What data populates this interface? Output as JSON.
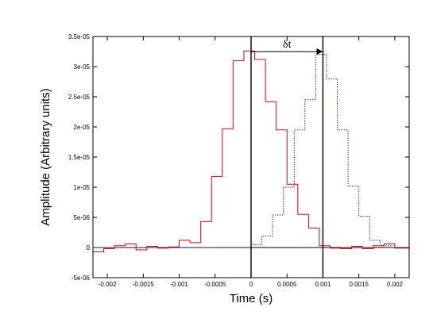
{
  "chart_data": {
    "type": "line",
    "title": "",
    "xlabel": "Time (s)",
    "ylabel": "Amplitude (Arbitrary units)",
    "xlim": [
      -0.0022,
      0.0022
    ],
    "ylim": [
      -5e-06,
      3.5e-05
    ],
    "grid": false,
    "legend": "none",
    "x_ticks": [
      -0.002,
      -0.0015,
      -0.001,
      -0.0005,
      0,
      0.0005,
      0.001,
      0.0015,
      0.002
    ],
    "x_tick_labels": [
      "-0.002",
      "-0.0015",
      "-0.001",
      "-0.0005",
      "0",
      "0.0005",
      "0.001",
      "0.0015",
      "0.002"
    ],
    "y_ticks": [
      -5e-06,
      0,
      5e-06,
      1e-05,
      1.5e-05,
      2e-05,
      2.5e-05,
      3e-05,
      3.5e-05
    ],
    "y_tick_labels": [
      "-5e-06",
      "0",
      "5e-06",
      "1e-05",
      "1.5e-05",
      "2e-05",
      "2.5e-05",
      "3e-05",
      "3.5e-05"
    ],
    "series": [
      {
        "style": "solid-steps",
        "color": "#e8000b",
        "bin_edges": [
          -0.0022,
          -0.00205,
          -0.0019,
          -0.00175,
          -0.0016,
          -0.00145,
          -0.0013,
          -0.00115,
          -0.001,
          -0.00085,
          -0.0007,
          -0.00055,
          -0.0004,
          -0.00025,
          -0.0001,
          5e-05,
          0.0002,
          0.00035,
          0.0005,
          0.00065,
          0.0008,
          0.00095,
          0.0011,
          0.00125,
          0.0014,
          0.00155,
          0.0017,
          0.00185,
          0.002,
          0.00215,
          0.0022
        ],
        "values": [
          -7e-07,
          -2e-07,
          3e-07,
          6e-07,
          -4e-07,
          2e-07,
          -1e-07,
          1e-07,
          1.2e-06,
          8e-07,
          4.3e-06,
          1.18e-05,
          1.97e-05,
          3.1e-05,
          3.26e-05,
          3.12e-05,
          2.42e-05,
          1.95e-05,
          1.05e-05,
          5.5e-06,
          3.2e-06,
          3e-07,
          -1e-07,
          -2e-07,
          2e-07,
          -2e-07,
          3e-07,
          6e-07,
          -1e-07,
          -1e-07
        ]
      },
      {
        "style": "dotted-steps",
        "color": "#2020c0",
        "bin_edges": [
          -0.0022,
          0.0,
          0.00015,
          0.0003,
          0.00045,
          0.0006,
          0.00075,
          0.0009,
          0.00105,
          0.0012,
          0.00135,
          0.0015,
          0.00165,
          0.0018,
          0.00195,
          0.0022
        ],
        "values": [
          0.0,
          5e-07,
          1.9e-06,
          5.4e-06,
          1e-05,
          1.95e-05,
          2.45e-05,
          3.2e-05,
          2.8e-05,
          1.95e-05,
          1.02e-05,
          5.2e-06,
          1.2e-06,
          3e-07,
          0.0
        ]
      }
    ],
    "annotation": {
      "label": "δt",
      "x_start": 0.0,
      "x_end": 0.001,
      "arrow_y": 3.25e-05,
      "color": "#000000"
    }
  }
}
